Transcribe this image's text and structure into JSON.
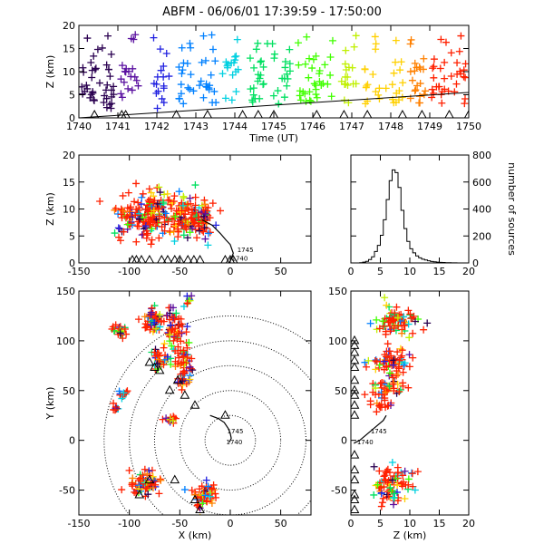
{
  "title": "ABFM - 06/06/01 17:39:59 - 17:50:00",
  "chart_data": [
    {
      "id": "time_height",
      "type": "scatter",
      "xlabel": "Time (UT)",
      "ylabel": "Z (km)",
      "xlim": [
        1740,
        1750
      ],
      "ylim": [
        0,
        20
      ],
      "xticks": [
        "1740",
        "1741",
        "1742",
        "1743",
        "1744",
        "1745",
        "1746",
        "1747",
        "1748",
        "1749",
        "1750"
      ],
      "yticks": [
        "0",
        "5",
        "10",
        "15",
        "20"
      ],
      "color_scale": [
        "#2a0050",
        "#5a10a0",
        "#2020e0",
        "#0080ff",
        "#00d0e0",
        "#00e060",
        "#40ff00",
        "#c0f000",
        "#ffd000",
        "#ff8000",
        "#ff2000"
      ],
      "clusters": [
        {
          "t": 1740.25,
          "zlo": 2,
          "zhi": 12,
          "n": 18
        },
        {
          "t": 1740.75,
          "zlo": 2,
          "zhi": 12,
          "n": 18
        },
        {
          "t": 1741.3,
          "zlo": 2,
          "zhi": 12,
          "n": 16
        },
        {
          "t": 1742.1,
          "zlo": 2,
          "zhi": 12,
          "n": 14
        },
        {
          "t": 1742.75,
          "zlo": 3,
          "zhi": 12,
          "n": 14
        },
        {
          "t": 1743.3,
          "zlo": 3,
          "zhi": 13,
          "n": 16
        },
        {
          "t": 1743.9,
          "zlo": 3,
          "zhi": 13,
          "n": 14
        },
        {
          "t": 1744.6,
          "zlo": 3,
          "zhi": 13,
          "n": 18
        },
        {
          "t": 1745.2,
          "zlo": 3,
          "zhi": 14,
          "n": 14
        },
        {
          "t": 1745.85,
          "zlo": 3,
          "zhi": 13,
          "n": 16
        },
        {
          "t": 1746.3,
          "zlo": 4,
          "zhi": 12,
          "n": 12
        },
        {
          "t": 1746.9,
          "zlo": 3,
          "zhi": 12,
          "n": 14
        },
        {
          "t": 1747.5,
          "zlo": 3,
          "zhi": 12,
          "n": 12
        },
        {
          "t": 1748.1,
          "zlo": 3,
          "zhi": 12,
          "n": 12
        },
        {
          "t": 1748.7,
          "zlo": 3,
          "zhi": 12,
          "n": 18
        },
        {
          "t": 1749.2,
          "zlo": 3,
          "zhi": 12,
          "n": 16
        },
        {
          "t": 1749.7,
          "zlo": 3,
          "zhi": 12,
          "n": 14
        }
      ],
      "track_line": {
        "x": [
          1740,
          1750
        ],
        "y": [
          0,
          5.5
        ]
      },
      "stations_time": [
        1740.4,
        1741.1,
        1741.2,
        1742.5,
        1743.3,
        1744.2,
        1744.6,
        1745.0,
        1746.1,
        1746.8,
        1747.4,
        1748.3,
        1748.8,
        1749.5,
        1750.0
      ]
    },
    {
      "id": "xz_projection",
      "type": "scatter",
      "xlabel": "",
      "ylabel": "Z (km)",
      "xlim": [
        -150,
        80
      ],
      "ylim": [
        0,
        20
      ],
      "xticks": [
        "-150",
        "-100",
        "-50",
        "0",
        "50"
      ],
      "yticks": [
        "0",
        "5",
        "10",
        "15",
        "20"
      ],
      "clusters": [
        {
          "x": -100,
          "z": 9,
          "sx": 14,
          "sz": 3,
          "n": 60
        },
        {
          "x": -75,
          "z": 9,
          "sx": 15,
          "sz": 3,
          "n": 110
        },
        {
          "x": -45,
          "z": 8,
          "sx": 15,
          "sz": 3,
          "n": 110
        },
        {
          "x": -25,
          "z": 8,
          "sx": 8,
          "sz": 3,
          "n": 40
        }
      ],
      "stations_x": [
        -97,
        -93,
        -88,
        -80,
        -68,
        -62,
        -55,
        -50,
        -42,
        -36,
        -30,
        -5,
        0,
        3
      ],
      "track": {
        "x": [
          -28,
          -18,
          -10,
          -4,
          0,
          3,
          0
        ],
        "z": [
          8,
          7,
          5.5,
          4.2,
          3.4,
          1.8,
          0.4
        ]
      },
      "annotations": [
        "1745",
        "1740"
      ]
    },
    {
      "id": "height_histogram",
      "type": "line",
      "xlabel": "",
      "ylabel": "number of sources",
      "xlim": [
        0,
        20
      ],
      "ylim": [
        0,
        800
      ],
      "xticks": [
        "0",
        "5",
        "10",
        "15",
        "20"
      ],
      "yticks": [
        "0",
        "200",
        "400",
        "600",
        "800"
      ],
      "x": [
        0,
        0.5,
        1,
        1.5,
        2,
        2.5,
        3,
        3.5,
        4,
        4.5,
        5,
        5.5,
        6,
        6.5,
        7,
        7.5,
        8,
        8.5,
        9,
        9.5,
        10,
        10.5,
        11,
        11.5,
        12,
        12.5,
        13,
        13.5,
        14,
        14.5,
        15,
        15.5,
        16,
        16.5,
        17,
        17.5,
        18,
        18.5,
        19,
        19.5
      ],
      "values": [
        0,
        0,
        0,
        2,
        6,
        12,
        25,
        45,
        85,
        130,
        205,
        320,
        470,
        610,
        690,
        670,
        560,
        390,
        255,
        160,
        105,
        75,
        52,
        38,
        28,
        22,
        16,
        11,
        8,
        6,
        4,
        3,
        2,
        2,
        1,
        1,
        0,
        0,
        0,
        0
      ]
    },
    {
      "id": "plan_view",
      "type": "scatter",
      "xlabel": "X (km)",
      "ylabel": "Y (km)",
      "xlim": [
        -150,
        80
      ],
      "ylim": [
        -75,
        150
      ],
      "xticks": [
        "-150",
        "-100",
        "-50",
        "0",
        "50"
      ],
      "yticks": [
        "-50",
        "0",
        "50",
        "100",
        "150"
      ],
      "range_rings_km": [
        25,
        50,
        75,
        100,
        125
      ],
      "clusters": [
        {
          "x": -110,
          "y": 110,
          "sx": 6,
          "sy": 6,
          "n": 25
        },
        {
          "x": -75,
          "y": 120,
          "sx": 9,
          "sy": 12,
          "n": 55
        },
        {
          "x": -55,
          "y": 112,
          "sx": 10,
          "sy": 15,
          "n": 60
        },
        {
          "x": -45,
          "y": 75,
          "sx": 8,
          "sy": 18,
          "n": 60
        },
        {
          "x": -40,
          "y": 140,
          "sx": 3,
          "sy": 5,
          "n": 10
        },
        {
          "x": -70,
          "y": 82,
          "sx": 8,
          "sy": 10,
          "n": 30
        },
        {
          "x": -106,
          "y": 46,
          "sx": 4,
          "sy": 3,
          "n": 12
        },
        {
          "x": -113,
          "y": 33,
          "sx": 3,
          "sy": 2,
          "n": 10
        },
        {
          "x": -60,
          "y": 20,
          "sx": 6,
          "sy": 4,
          "n": 12
        },
        {
          "x": -85,
          "y": -45,
          "sx": 12,
          "sy": 10,
          "n": 70
        },
        {
          "x": -25,
          "y": -55,
          "sx": 10,
          "sy": 10,
          "n": 50
        }
      ],
      "stations": [
        [
          -80,
          78
        ],
        [
          -75,
          73
        ],
        [
          -70,
          70
        ],
        [
          -52,
          60
        ],
        [
          -60,
          50
        ],
        [
          -45,
          45
        ],
        [
          -35,
          35
        ],
        [
          -5,
          25
        ],
        [
          -55,
          -40
        ],
        [
          -90,
          -55
        ],
        [
          -80,
          -40
        ],
        [
          -30,
          -70
        ],
        [
          -35,
          -60
        ]
      ],
      "track": {
        "x": [
          -20,
          -12,
          -6,
          -2,
          0,
          1,
          -1
        ],
        "y": [
          25,
          22,
          18,
          12,
          7,
          2,
          -2
        ]
      },
      "annotations": [
        "1745",
        "1740"
      ]
    },
    {
      "id": "zy_projection",
      "type": "scatter",
      "xlabel": "Z (km)",
      "ylabel": "",
      "xlim": [
        0,
        20
      ],
      "ylim": [
        -75,
        150
      ],
      "xticks": [
        "0",
        "5",
        "10",
        "15",
        "20"
      ],
      "yticks": [
        "-50",
        "0",
        "50",
        "100",
        "150"
      ],
      "clusters": [
        {
          "z": 8,
          "y": 120,
          "sz": 3,
          "sy": 10,
          "n": 80
        },
        {
          "z": 7,
          "y": 78,
          "sz": 3,
          "sy": 10,
          "n": 70
        },
        {
          "z": 6,
          "y": 52,
          "sz": 2.5,
          "sy": 6,
          "n": 40
        },
        {
          "z": 7,
          "y": -45,
          "sz": 3,
          "sy": 12,
          "n": 80
        },
        {
          "z": 5,
          "y": 35,
          "sz": 2,
          "sy": 3,
          "n": 15
        }
      ],
      "stations_y": [
        100,
        95,
        88,
        80,
        73,
        60,
        50,
        45,
        35,
        25,
        -15,
        -30,
        -40,
        -55,
        -60,
        -70
      ],
      "track": {
        "z": [
          6,
          5.5,
          4.5,
          3.5,
          2.5,
          1.5,
          0.5
        ],
        "y": [
          25,
          20,
          15,
          10,
          5,
          0,
          -3
        ]
      },
      "annotations": [
        "1745",
        "1740"
      ]
    }
  ]
}
